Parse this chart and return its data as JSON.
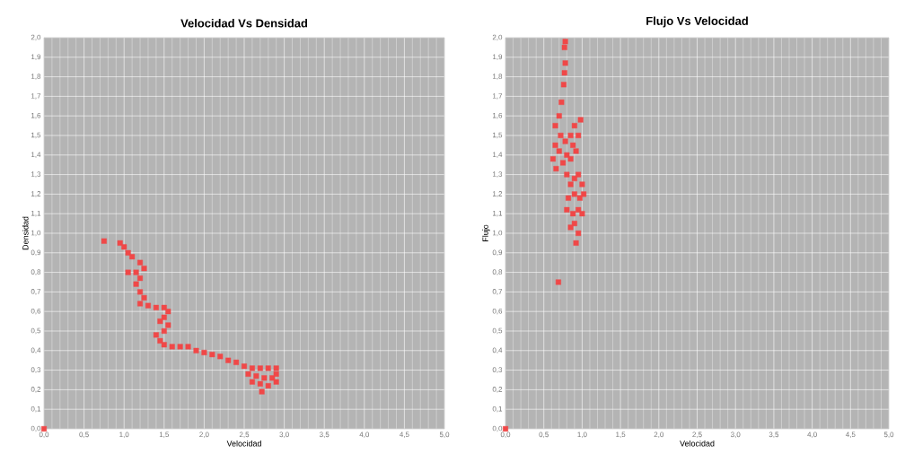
{
  "chart_data": [
    {
      "type": "scatter",
      "title": "Velocidad Vs Densidad",
      "xlabel": "Velocidad",
      "ylabel": "Densidad",
      "marker": "square",
      "grid": true,
      "xlim": [
        0,
        5
      ],
      "ylim": [
        0,
        2
      ],
      "xticks": [
        {
          "value": 0,
          "label": "0,0"
        },
        {
          "value": 0.5,
          "label": "0,5"
        },
        {
          "value": 1,
          "label": "1,0"
        },
        {
          "value": 1.5,
          "label": "1,5"
        },
        {
          "value": 2,
          "label": "2,0"
        },
        {
          "value": 2.5,
          "label": "2,5"
        },
        {
          "value": 3,
          "label": "3,0"
        },
        {
          "value": 3.5,
          "label": "3,5"
        },
        {
          "value": 4,
          "label": "4,0"
        },
        {
          "value": 4.5,
          "label": "4,5"
        },
        {
          "value": 5,
          "label": "5,0"
        }
      ],
      "yticks": [
        {
          "value": 0,
          "label": "0,0"
        },
        {
          "value": 0.1,
          "label": "0,1"
        },
        {
          "value": 0.2,
          "label": "0,2"
        },
        {
          "value": 0.3,
          "label": "0,3"
        },
        {
          "value": 0.4,
          "label": "0,4"
        },
        {
          "value": 0.5,
          "label": "0,5"
        },
        {
          "value": 0.6,
          "label": "0,6"
        },
        {
          "value": 0.7,
          "label": "0,7"
        },
        {
          "value": 0.8,
          "label": "0,8"
        },
        {
          "value": 0.9,
          "label": "0,9"
        },
        {
          "value": 1,
          "label": "1,0"
        },
        {
          "value": 1.1,
          "label": "1,1"
        },
        {
          "value": 1.2,
          "label": "1,2"
        },
        {
          "value": 1.3,
          "label": "1,3"
        },
        {
          "value": 1.4,
          "label": "1,4"
        },
        {
          "value": 1.5,
          "label": "1,5"
        },
        {
          "value": 1.6,
          "label": "1,6"
        },
        {
          "value": 1.7,
          "label": "1,7"
        },
        {
          "value": 1.8,
          "label": "1,8"
        },
        {
          "value": 1.9,
          "label": "1,9"
        },
        {
          "value": 2,
          "label": "2,0"
        }
      ],
      "series": [
        {
          "color": "#f04848",
          "x": [
            0,
            0.75,
            0.95,
            1.0,
            1.05,
            1.1,
            1.2,
            1.25,
            1.15,
            1.05,
            1.2,
            1.15,
            1.2,
            1.25,
            1.2,
            1.3,
            1.4,
            1.5,
            1.55,
            1.5,
            1.45,
            1.55,
            1.5,
            1.4,
            1.45,
            1.5,
            1.6,
            1.7,
            1.8,
            1.9,
            2.0,
            2.1,
            2.2,
            2.3,
            2.4,
            2.5,
            2.6,
            2.7,
            2.8,
            2.9,
            2.55,
            2.65,
            2.75,
            2.85,
            2.9,
            2.6,
            2.7,
            2.8,
            2.9,
            2.72
          ],
          "values": [
            0,
            0.96,
            0.95,
            0.93,
            0.9,
            0.88,
            0.85,
            0.82,
            0.8,
            0.8,
            0.77,
            0.74,
            0.7,
            0.67,
            0.64,
            0.63,
            0.62,
            0.62,
            0.6,
            0.57,
            0.55,
            0.53,
            0.5,
            0.48,
            0.45,
            0.43,
            0.42,
            0.42,
            0.42,
            0.4,
            0.39,
            0.38,
            0.37,
            0.35,
            0.34,
            0.32,
            0.31,
            0.31,
            0.31,
            0.31,
            0.28,
            0.27,
            0.26,
            0.26,
            0.28,
            0.24,
            0.23,
            0.22,
            0.24,
            0.19
          ]
        }
      ]
    },
    {
      "type": "scatter",
      "title": "Flujo Vs Velocidad",
      "xlabel": "Velocidad",
      "ylabel": "Flujo",
      "marker": "square",
      "grid": true,
      "xlim": [
        0,
        5
      ],
      "ylim": [
        0,
        2
      ],
      "xticks": [
        {
          "value": 0,
          "label": "0,0"
        },
        {
          "value": 0.5,
          "label": "0,5"
        },
        {
          "value": 1,
          "label": "1,0"
        },
        {
          "value": 1.5,
          "label": "1,5"
        },
        {
          "value": 2,
          "label": "2,0"
        },
        {
          "value": 2.5,
          "label": "2,5"
        },
        {
          "value": 3,
          "label": "3,0"
        },
        {
          "value": 3.5,
          "label": "3,5"
        },
        {
          "value": 4,
          "label": "4,0"
        },
        {
          "value": 4.5,
          "label": "4,5"
        },
        {
          "value": 5,
          "label": "5,0"
        }
      ],
      "yticks": [
        {
          "value": 0,
          "label": "0,0"
        },
        {
          "value": 0.1,
          "label": "0,1"
        },
        {
          "value": 0.2,
          "label": "0,2"
        },
        {
          "value": 0.3,
          "label": "0,3"
        },
        {
          "value": 0.4,
          "label": "0,4"
        },
        {
          "value": 0.5,
          "label": "0,5"
        },
        {
          "value": 0.6,
          "label": "0,6"
        },
        {
          "value": 0.7,
          "label": "0,7"
        },
        {
          "value": 0.8,
          "label": "0,8"
        },
        {
          "value": 0.9,
          "label": "0,9"
        },
        {
          "value": 1,
          "label": "1,0"
        },
        {
          "value": 1.1,
          "label": "1,1"
        },
        {
          "value": 1.2,
          "label": "1,2"
        },
        {
          "value": 1.3,
          "label": "1,3"
        },
        {
          "value": 1.4,
          "label": "1,4"
        },
        {
          "value": 1.5,
          "label": "1,5"
        },
        {
          "value": 1.6,
          "label": "1,6"
        },
        {
          "value": 1.7,
          "label": "1,7"
        },
        {
          "value": 1.8,
          "label": "1,8"
        },
        {
          "value": 1.9,
          "label": "1,9"
        },
        {
          "value": 2,
          "label": "2,0"
        }
      ],
      "series": [
        {
          "color": "#f04848",
          "x": [
            0,
            0.69,
            0.78,
            0.77,
            0.78,
            0.77,
            0.76,
            0.73,
            0.7,
            0.65,
            0.65,
            0.62,
            0.66,
            0.7,
            0.72,
            0.78,
            0.8,
            0.85,
            0.88,
            0.9,
            0.95,
            0.98,
            0.92,
            0.85,
            0.75,
            0.8,
            0.85,
            0.9,
            0.95,
            1.0,
            1.02,
            0.97,
            0.9,
            0.82,
            0.8,
            0.88,
            0.95,
            1.0,
            0.9,
            0.95,
            0.85,
            0.92
          ],
          "values": [
            0,
            0.75,
            1.98,
            1.95,
            1.87,
            1.82,
            1.76,
            1.67,
            1.6,
            1.55,
            1.45,
            1.38,
            1.33,
            1.42,
            1.5,
            1.47,
            1.4,
            1.5,
            1.45,
            1.55,
            1.5,
            1.58,
            1.42,
            1.38,
            1.36,
            1.3,
            1.25,
            1.28,
            1.3,
            1.25,
            1.2,
            1.18,
            1.2,
            1.18,
            1.12,
            1.1,
            1.12,
            1.1,
            1.05,
            1.0,
            1.03,
            0.95
          ]
        }
      ]
    }
  ]
}
